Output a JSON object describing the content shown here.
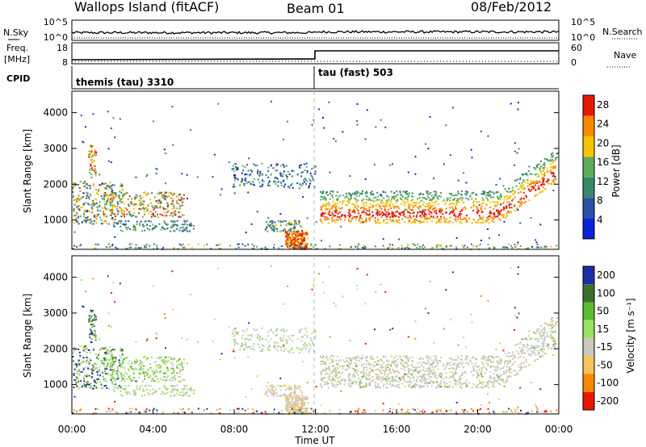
{
  "header": {
    "station": "Wallops Island (fitACF)",
    "beam": "Beam 01",
    "date": "08/Feb/2012"
  },
  "noise_panel": {
    "left_label": "N.Sky",
    "right_label": "N.Search",
    "left_ticks": [
      "10^5",
      "10^0"
    ],
    "right_ticks": [
      "10^5",
      "10^0"
    ]
  },
  "freq_panel": {
    "left_label_1": "Freq.",
    "left_label_2": "[MHz]",
    "right_label": "Nave",
    "left_ticks": [
      "18",
      "8"
    ],
    "right_ticks": [
      "60",
      "0"
    ]
  },
  "cpid_panel": {
    "label": "CPID",
    "modes": [
      "themis (tau) 3310",
      "tau (fast) 503"
    ]
  },
  "chart_data": [
    {
      "type": "heatmap",
      "title": "",
      "ylabel": "Slant Range [km]",
      "yticks": [
        "1000",
        "2000",
        "3000",
        "4000"
      ],
      "colorbar": {
        "label": "Power [dB]",
        "ticks": [
          "4",
          "8",
          "12",
          "16",
          "20",
          "24",
          "28"
        ],
        "colors": [
          "#0b22d8",
          "#2d4fa8",
          "#38896a",
          "#5fab5c",
          "#f4c400",
          "#f58a00",
          "#e61a00"
        ]
      },
      "annotations": {
        "mode_change_time": "12:00"
      }
    },
    {
      "type": "heatmap",
      "title": "",
      "ylabel": "Slant Range [km]",
      "yticks": [
        "1000",
        "2000",
        "3000",
        "4000"
      ],
      "xlabel": "Time UT",
      "xticks": [
        "00:00",
        "04:00",
        "08:00",
        "12:00",
        "16:00",
        "20:00",
        "00:00"
      ],
      "colorbar": {
        "label": "Velocity [m s⁻¹]",
        "ticks": [
          "200",
          "100",
          "50",
          "15",
          "-15",
          "-50",
          "-100",
          "-200"
        ],
        "colors": [
          "#1b2ea8",
          "#3b6f2e",
          "#5dbb2e",
          "#9be060",
          "#c9c9c0",
          "#f5c45a",
          "#f58a00",
          "#e61a00"
        ]
      }
    }
  ]
}
